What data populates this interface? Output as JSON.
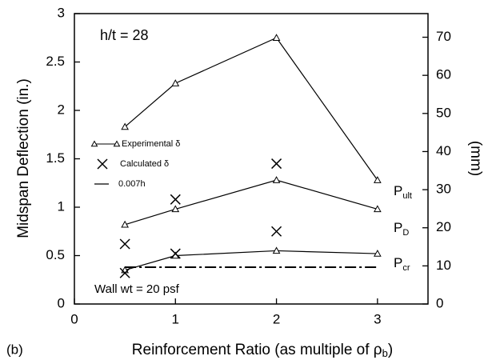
{
  "chart_data": {
    "type": "line",
    "ylabel": "Midspan Deflection (in.)",
    "y2label": "(mm)",
    "xlabel": "Reinforcement Ratio (as multiple of ρ",
    "xlabel_sub": "b",
    "xlabel_end": ")",
    "panel": "(b)",
    "annotations": [
      "h/t = 28",
      "Wall wt = 20 psf"
    ],
    "xlim": [
      0,
      3.5
    ],
    "xticks": [
      0,
      1,
      2,
      3
    ],
    "ylim": [
      0,
      3
    ],
    "yticks": [
      0,
      0.5,
      1,
      1.5,
      2,
      2.5,
      3
    ],
    "y2lim": [
      0,
      76.2
    ],
    "y2ticks": [
      0,
      10,
      20,
      30,
      40,
      50,
      60,
      70
    ],
    "color": "#000000",
    "legend": [
      "Experimental δ",
      "Calculated δ",
      "0.007h"
    ],
    "x": [
      0.5,
      1,
      2,
      3
    ],
    "series": [
      {
        "label": "P",
        "label_sub": "ult",
        "values": [
          1.83,
          2.28,
          2.75,
          1.28
        ]
      },
      {
        "label": "P",
        "label_sub": "D",
        "values": [
          0.82,
          0.98,
          1.28,
          0.98
        ]
      },
      {
        "label": "P",
        "label_sub": "cr",
        "values": [
          0.35,
          0.5,
          0.55,
          0.52
        ]
      }
    ],
    "calculated": {
      "x": [
        0.5,
        0.5,
        1,
        1,
        2,
        2
      ],
      "values": [
        0.62,
        0.32,
        1.08,
        0.52,
        1.45,
        0.75
      ]
    },
    "limit": {
      "x": [
        0.5,
        3
      ],
      "values": [
        0.38,
        0.38
      ]
    }
  }
}
